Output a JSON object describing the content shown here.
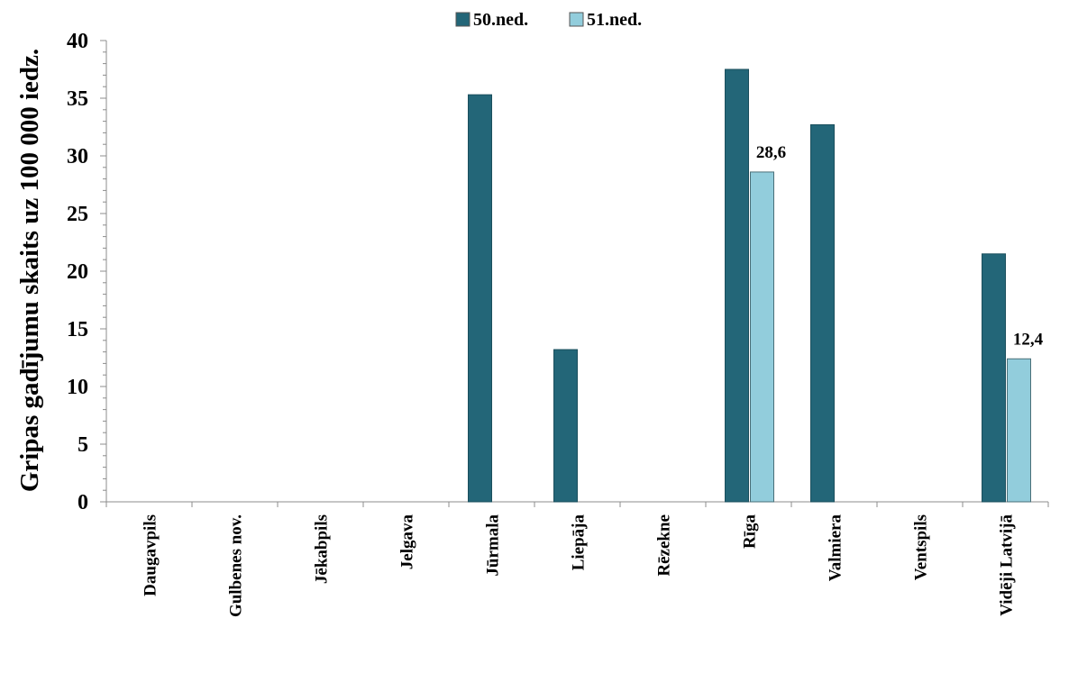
{
  "chart_data": {
    "type": "bar",
    "ylabel": "Gripas gadījumu skaits uz 100 000 iedz.",
    "xlabel": "",
    "ylim": [
      0,
      40
    ],
    "yticks": [
      0,
      5,
      10,
      15,
      20,
      25,
      30,
      35,
      40
    ],
    "grid": false,
    "legend_position": "top-center",
    "categories": [
      "Daugavpils",
      "Gulbenes nov.",
      "Jēkabpils",
      "Jelgava",
      "Jūrmala",
      "Liepāja",
      "Rēzekne",
      "Rīga",
      "Valmiera",
      "Ventspils",
      "Vidēji Latvijā"
    ],
    "series": [
      {
        "name": "50.ned.",
        "color": "#236678",
        "values": [
          0,
          0,
          0,
          0,
          35.3,
          13.2,
          0,
          37.5,
          32.7,
          0,
          21.5
        ],
        "data_labels": [
          null,
          null,
          null,
          null,
          null,
          null,
          null,
          null,
          null,
          null,
          null
        ]
      },
      {
        "name": "51.ned.",
        "color": "#92CDDC",
        "values": [
          0,
          0,
          0,
          0,
          0,
          0,
          0,
          28.6,
          0,
          0,
          12.4
        ],
        "data_labels": [
          null,
          null,
          null,
          null,
          null,
          null,
          null,
          "28,6",
          null,
          null,
          "12,4"
        ]
      }
    ]
  }
}
